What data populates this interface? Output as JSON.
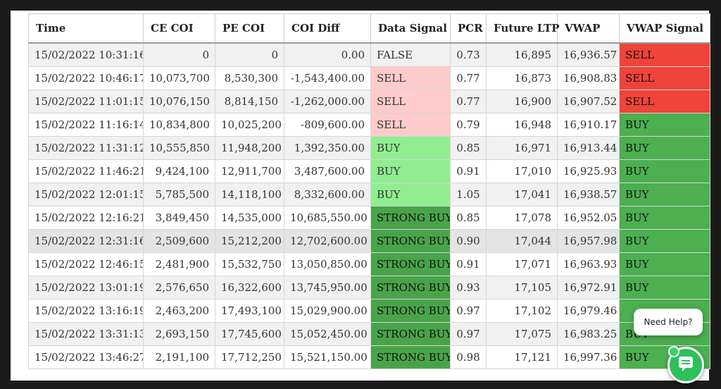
{
  "table": {
    "headers": [
      "Time",
      "CE COI",
      "PE COI",
      "COI Diff",
      "Data Signal",
      "PCR",
      "Future LTP",
      "VWAP",
      "VWAP Signal"
    ],
    "rows": [
      [
        "15/02/2022 10:31:16",
        "0",
        "0",
        "0.00",
        "FALSE",
        "0.73",
        "16,895",
        "16,936.57",
        "SELL"
      ],
      [
        "15/02/2022 10:46:17",
        "10,073,700",
        "8,530,300",
        "-1,543,400.00",
        "SELL",
        "0.77",
        "16,873",
        "16,908.83",
        "SELL"
      ],
      [
        "15/02/2022 11:01:15",
        "10,076,150",
        "8,814,150",
        "-1,262,000.00",
        "SELL",
        "0.77",
        "16,900",
        "16,907.52",
        "SELL"
      ],
      [
        "15/02/2022 11:16:14",
        "10,834,800",
        "10,025,200",
        "-809,600.00",
        "SELL",
        "0.79",
        "16,948",
        "16,910.17",
        "BUY"
      ],
      [
        "15/02/2022 11:31:12",
        "10,555,850",
        "11,948,200",
        "1,392,350.00",
        "BUY",
        "0.85",
        "16,971",
        "16,913.44",
        "BUY"
      ],
      [
        "15/02/2022 11:46:21",
        "9,424,100",
        "12,911,700",
        "3,487,600.00",
        "BUY",
        "0.91",
        "17,010",
        "16,925.93",
        "BUY"
      ],
      [
        "15/02/2022 12:01:15",
        "5,785,500",
        "14,118,100",
        "8,332,600.00",
        "BUY",
        "1.05",
        "17,041",
        "16,938.57",
        "BUY"
      ],
      [
        "15/02/2022 12:16:21",
        "3,849,450",
        "14,535,000",
        "10,685,550.00",
        "STRONG BUY",
        "0.85",
        "17,078",
        "16,952.05",
        "BUY"
      ],
      [
        "15/02/2022 12:31:16",
        "2,509,600",
        "15,212,200",
        "12,702,600.00",
        "STRONG BUY",
        "0.90",
        "17,044",
        "16,957.98",
        "BUY"
      ],
      [
        "15/02/2022 12:46:15",
        "2,481,900",
        "15,532,750",
        "13,050,850.00",
        "STRONG BUY",
        "0.91",
        "17,071",
        "16,963.93",
        "BUY"
      ],
      [
        "15/02/2022 13:01:19",
        "2,576,650",
        "16,322,600",
        "13,745,950.00",
        "STRONG BUY",
        "0.93",
        "17,105",
        "16,972.91",
        "BUY"
      ],
      [
        "15/02/2022 13:16:19",
        "2,463,200",
        "17,493,100",
        "15,029,900.00",
        "STRONG BUY",
        "0.97",
        "17,102",
        "16,979.46",
        ""
      ],
      [
        "15/02/2022 13:31:13",
        "2,693,150",
        "17,745,600",
        "15,052,450.00",
        "STRONG BUY",
        "0.97",
        "17,075",
        "16,983.25",
        "BUY"
      ],
      [
        "15/02/2022 13:46:27",
        "2,191,100",
        "17,712,250",
        "15,521,150.00",
        "STRONG BUY",
        "0.98",
        "17,121",
        "16,997.36",
        "BUY"
      ]
    ]
  },
  "help": {
    "label": "Need Help?"
  },
  "icons": {
    "chat": "chat-icon"
  },
  "colors": {
    "sell_light": "#ffcccb",
    "buy_light": "#90ee90",
    "strong_buy": "#49a349",
    "vwap_sell": "#f0433a",
    "vwap_buy": "#4caf50",
    "chat_green": "#2ec05a"
  }
}
